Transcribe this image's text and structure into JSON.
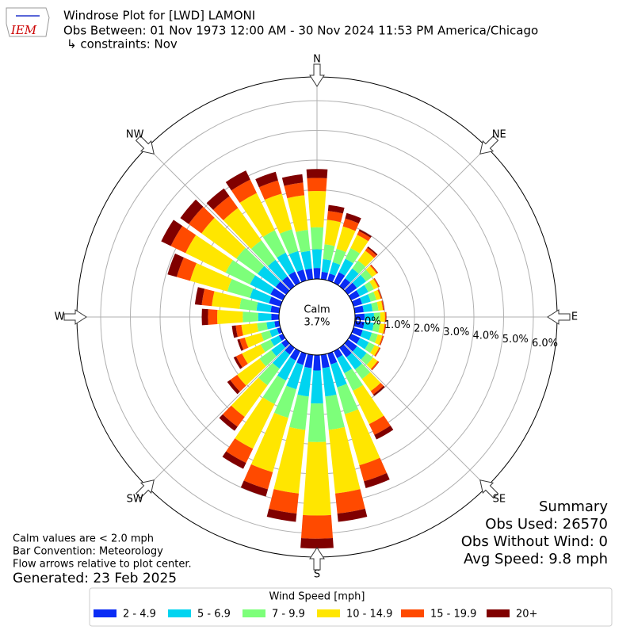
{
  "chart_data": {
    "type": "windrose",
    "logo_text": "IEM",
    "title": "Windrose Plot for [LWD] LAMONI",
    "subtitle": "Obs Between: 01 Nov 1973 12:00 AM - 30 Nov 2024 11:53 PM America/Chicago",
    "constraints": "↳ constraints: Nov",
    "compass_labels": [
      "N",
      "NE",
      "E",
      "SE",
      "S",
      "SW",
      "W",
      "NW"
    ],
    "calm_label": "Calm",
    "calm_value": 3.7,
    "calm_value_label": "3.7%",
    "rlim": [
      0,
      6.8
    ],
    "rticks": [
      {
        "value": 0,
        "label": "0.0%"
      },
      {
        "value": 1,
        "label": "1.0%"
      },
      {
        "value": 2,
        "label": "2.0%"
      },
      {
        "value": 3,
        "label": "3.0%"
      },
      {
        "value": 4,
        "label": "4.0%"
      },
      {
        "value": 5,
        "label": "5.0%"
      },
      {
        "value": 6,
        "label": "6.0%"
      }
    ],
    "grid": true,
    "legend_title": "Wind Speed [mph]",
    "series": [
      {
        "name": "2 - 4.9",
        "color": "#0a2cf5",
        "values": [
          0.37,
          0.25,
          0.24,
          0.4,
          0.33,
          0.38,
          0.32,
          0.3,
          0.3,
          0.32,
          0.32,
          0.32,
          0.33,
          0.39,
          0.4,
          0.26,
          0.38,
          0.45,
          0.52,
          0.45,
          0.4,
          0.35,
          0.28,
          0.2,
          0.15,
          0.12,
          0.16,
          0.26,
          0.29,
          0.4,
          0.46,
          0.44,
          0.41,
          0.42,
          0.38,
          0.36
        ]
      },
      {
        "name": "5 - 6.9",
        "color": "#00d4f0",
        "values": [
          0.63,
          0.43,
          0.4,
          0.5,
          0.41,
          0.38,
          0.32,
          0.3,
          0.3,
          0.32,
          0.32,
          0.32,
          0.33,
          0.39,
          0.5,
          0.56,
          0.8,
          0.96,
          1.11,
          0.96,
          0.85,
          0.75,
          0.59,
          0.42,
          0.31,
          0.26,
          0.27,
          0.44,
          0.48,
          0.67,
          0.77,
          0.75,
          0.69,
          0.71,
          0.65,
          0.6
        ]
      },
      {
        "name": "7 - 9.9",
        "color": "#7dff7a",
        "values": [
          0.74,
          0.5,
          0.47,
          0.4,
          0.33,
          0.25,
          0.21,
          0.2,
          0.2,
          0.21,
          0.21,
          0.21,
          0.22,
          0.26,
          0.4,
          0.66,
          0.94,
          1.13,
          1.3,
          1.13,
          1.0,
          0.88,
          0.69,
          0.49,
          0.37,
          0.3,
          0.32,
          0.52,
          0.57,
          0.79,
          0.91,
          0.88,
          0.81,
          0.84,
          0.76,
          0.71
        ]
      },
      {
        "name": "10 - 14.9",
        "color": "#ffe600",
        "values": [
          1.22,
          0.83,
          0.78,
          0.5,
          0.41,
          0.19,
          0.16,
          0.15,
          0.15,
          0.16,
          0.16,
          0.16,
          0.17,
          0.2,
          0.5,
          1.25,
          1.79,
          2.15,
          2.47,
          2.15,
          1.9,
          1.67,
          1.31,
          0.93,
          0.7,
          0.57,
          0.53,
          0.86,
          0.94,
          1.3,
          1.5,
          1.45,
          1.34,
          1.39,
          1.25,
          1.17
        ]
      },
      {
        "name": "15 - 19.9",
        "color": "#ff4a00",
        "values": [
          0.44,
          0.3,
          0.28,
          0.14,
          0.12,
          0.05,
          0.04,
          0.04,
          0.04,
          0.04,
          0.04,
          0.04,
          0.04,
          0.05,
          0.14,
          0.4,
          0.56,
          0.68,
          0.78,
          0.68,
          0.6,
          0.53,
          0.41,
          0.29,
          0.22,
          0.18,
          0.19,
          0.31,
          0.34,
          0.47,
          0.55,
          0.53,
          0.49,
          0.5,
          0.46,
          0.43
        ]
      },
      {
        "name": "20+",
        "color": "#800000",
        "values": [
          0.3,
          0.2,
          0.19,
          0.06,
          0.05,
          0.01,
          0.01,
          0.01,
          0.01,
          0.01,
          0.01,
          0.01,
          0.01,
          0.01,
          0.06,
          0.17,
          0.24,
          0.28,
          0.33,
          0.28,
          0.25,
          0.22,
          0.17,
          0.12,
          0.09,
          0.08,
          0.13,
          0.21,
          0.23,
          0.32,
          0.36,
          0.35,
          0.32,
          0.34,
          0.3,
          0.28
        ]
      }
    ],
    "notes": [
      "Calm values are < 2.0 mph",
      "Bar Convention: Meteorology",
      "Flow arrows relative to plot center."
    ],
    "generated": "Generated: 23 Feb 2025",
    "summary": [
      "Summary",
      "Obs Used: 26570",
      "Obs Without Wind: 0",
      "Avg Speed: 9.8 mph"
    ]
  }
}
